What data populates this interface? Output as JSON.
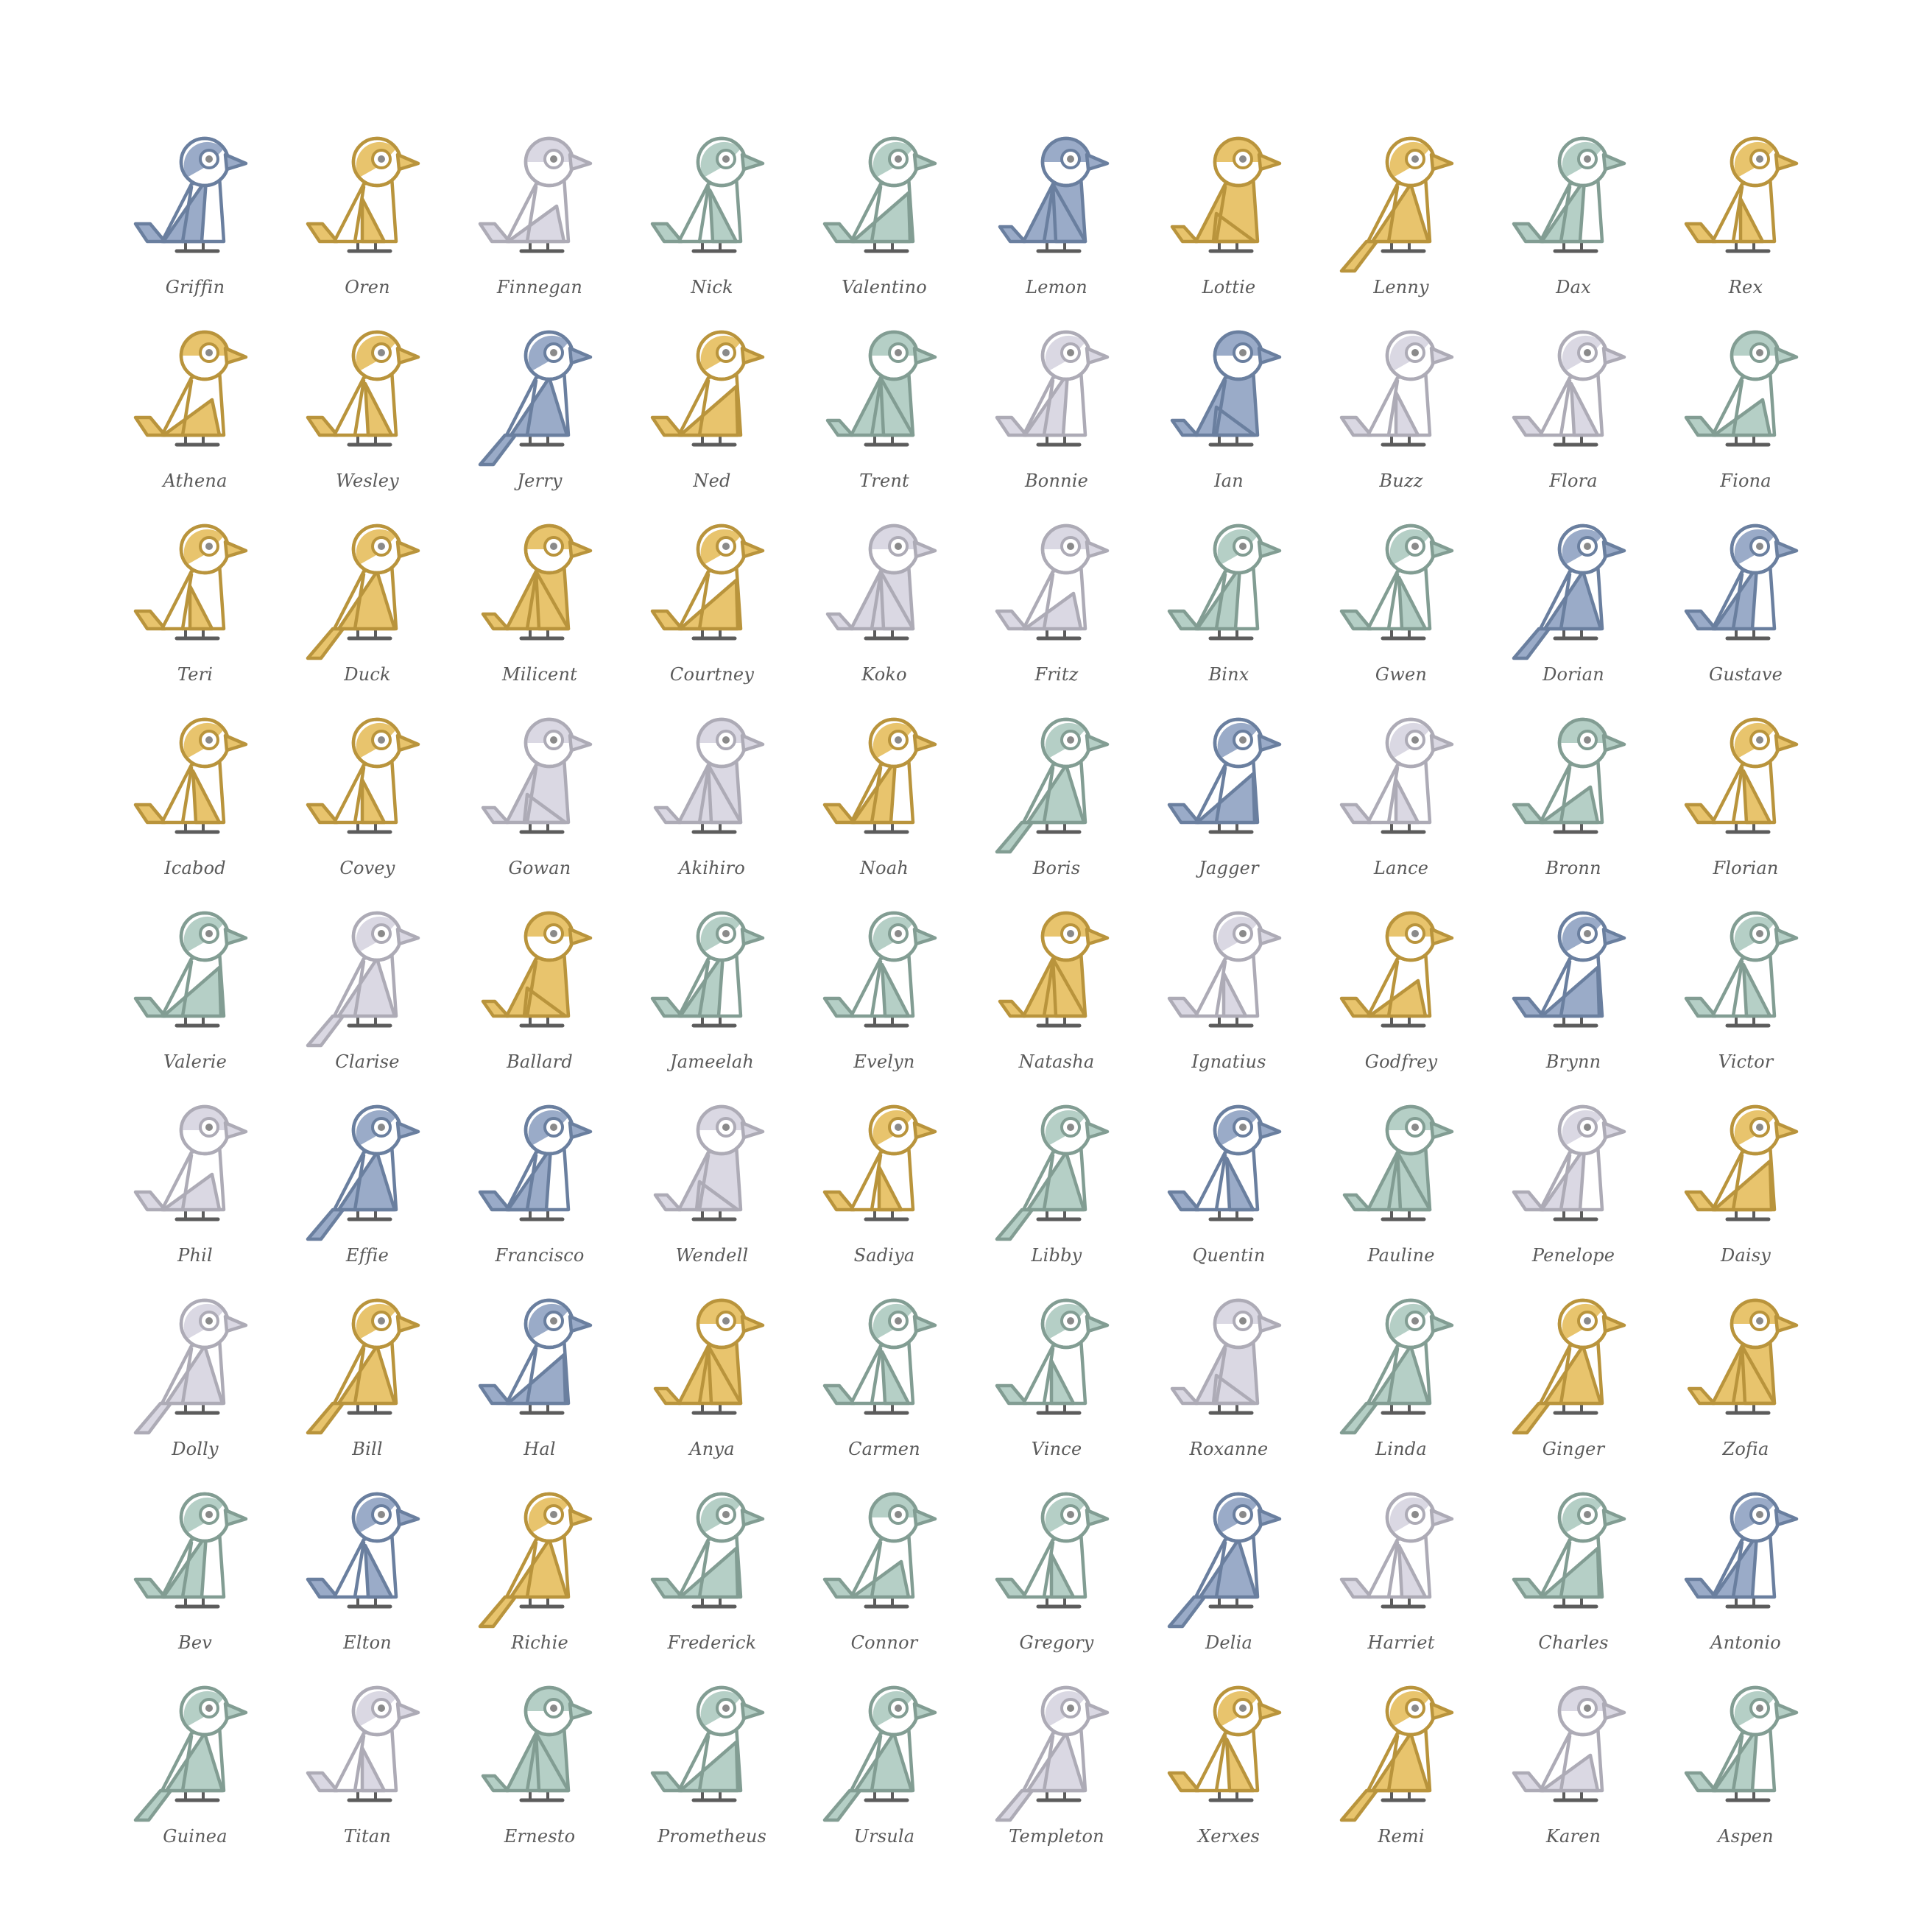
{
  "palette": {
    "blue": {
      "stroke": "#6a7f9f",
      "fill": "#9aabc8"
    },
    "gold": {
      "stroke": "#b9943c",
      "fill": "#e8c46d"
    },
    "lilac": {
      "stroke": "#adabb6",
      "fill": "#dad8e3"
    },
    "sage": {
      "stroke": "#829d93",
      "fill": "#b5cfc6"
    },
    "legs": "#5c5c5c",
    "pupil": "#8a8a8a"
  },
  "birds": [
    {
      "name": "Griffin",
      "color": "blue",
      "style": 1
    },
    {
      "name": "Oren",
      "color": "gold",
      "style": 2
    },
    {
      "name": "Finnegan",
      "color": "lilac",
      "style": 3
    },
    {
      "name": "Nick",
      "color": "sage",
      "style": 4
    },
    {
      "name": "Valentino",
      "color": "sage",
      "style": 5
    },
    {
      "name": "Lemon",
      "color": "blue",
      "style": 6
    },
    {
      "name": "Lottie",
      "color": "gold",
      "style": 0
    },
    {
      "name": "Lenny",
      "color": "gold",
      "style": 7
    },
    {
      "name": "Dax",
      "color": "sage",
      "style": 1
    },
    {
      "name": "Rex",
      "color": "gold",
      "style": 2
    },
    {
      "name": "Athena",
      "color": "gold",
      "style": 3
    },
    {
      "name": "Wesley",
      "color": "gold",
      "style": 4
    },
    {
      "name": "Jerry",
      "color": "blue",
      "style": 7
    },
    {
      "name": "Ned",
      "color": "gold",
      "style": 5
    },
    {
      "name": "Trent",
      "color": "sage",
      "style": 6
    },
    {
      "name": "Bonnie",
      "color": "lilac",
      "style": 1
    },
    {
      "name": "Ian",
      "color": "blue",
      "style": 0
    },
    {
      "name": "Buzz",
      "color": "lilac",
      "style": 2
    },
    {
      "name": "Flora",
      "color": "lilac",
      "style": 4
    },
    {
      "name": "Fiona",
      "color": "sage",
      "style": 3
    },
    {
      "name": "Teri",
      "color": "gold",
      "style": 2
    },
    {
      "name": "Duck",
      "color": "gold",
      "style": 7
    },
    {
      "name": "Milicent",
      "color": "gold",
      "style": 6
    },
    {
      "name": "Courtney",
      "color": "gold",
      "style": 5
    },
    {
      "name": "Koko",
      "color": "lilac",
      "style": 6
    },
    {
      "name": "Fritz",
      "color": "lilac",
      "style": 3
    },
    {
      "name": "Binx",
      "color": "sage",
      "style": 1
    },
    {
      "name": "Gwen",
      "color": "sage",
      "style": 4
    },
    {
      "name": "Dorian",
      "color": "blue",
      "style": 7
    },
    {
      "name": "Gustave",
      "color": "blue",
      "style": 1
    },
    {
      "name": "Icabod",
      "color": "gold",
      "style": 4
    },
    {
      "name": "Covey",
      "color": "gold",
      "style": 2
    },
    {
      "name": "Gowan",
      "color": "lilac",
      "style": 0
    },
    {
      "name": "Akihiro",
      "color": "lilac",
      "style": 6
    },
    {
      "name": "Noah",
      "color": "gold",
      "style": 1
    },
    {
      "name": "Boris",
      "color": "sage",
      "style": 7
    },
    {
      "name": "Jagger",
      "color": "blue",
      "style": 5
    },
    {
      "name": "Lance",
      "color": "lilac",
      "style": 2
    },
    {
      "name": "Bronn",
      "color": "sage",
      "style": 3
    },
    {
      "name": "Florian",
      "color": "gold",
      "style": 4
    },
    {
      "name": "Valerie",
      "color": "sage",
      "style": 5
    },
    {
      "name": "Clarise",
      "color": "lilac",
      "style": 7
    },
    {
      "name": "Ballard",
      "color": "gold",
      "style": 0
    },
    {
      "name": "Jameelah",
      "color": "sage",
      "style": 1
    },
    {
      "name": "Evelyn",
      "color": "sage",
      "style": 4
    },
    {
      "name": "Natasha",
      "color": "gold",
      "style": 6
    },
    {
      "name": "Ignatius",
      "color": "lilac",
      "style": 2
    },
    {
      "name": "Godfrey",
      "color": "gold",
      "style": 3
    },
    {
      "name": "Brynn",
      "color": "blue",
      "style": 5
    },
    {
      "name": "Victor",
      "color": "sage",
      "style": 4
    },
    {
      "name": "Phil",
      "color": "lilac",
      "style": 3
    },
    {
      "name": "Effie",
      "color": "blue",
      "style": 7
    },
    {
      "name": "Francisco",
      "color": "blue",
      "style": 1
    },
    {
      "name": "Wendell",
      "color": "lilac",
      "style": 0
    },
    {
      "name": "Sadiya",
      "color": "gold",
      "style": 2
    },
    {
      "name": "Libby",
      "color": "sage",
      "style": 7
    },
    {
      "name": "Quentin",
      "color": "blue",
      "style": 4
    },
    {
      "name": "Pauline",
      "color": "sage",
      "style": 6
    },
    {
      "name": "Penelope",
      "color": "lilac",
      "style": 1
    },
    {
      "name": "Daisy",
      "color": "gold",
      "style": 5
    },
    {
      "name": "Dolly",
      "color": "lilac",
      "style": 7
    },
    {
      "name": "Bill",
      "color": "gold",
      "style": 7
    },
    {
      "name": "Hal",
      "color": "blue",
      "style": 5
    },
    {
      "name": "Anya",
      "color": "gold",
      "style": 6
    },
    {
      "name": "Carmen",
      "color": "sage",
      "style": 4
    },
    {
      "name": "Vince",
      "color": "sage",
      "style": 2
    },
    {
      "name": "Roxanne",
      "color": "lilac",
      "style": 0
    },
    {
      "name": "Linda",
      "color": "sage",
      "style": 7
    },
    {
      "name": "Ginger",
      "color": "gold",
      "style": 7
    },
    {
      "name": "Zofia",
      "color": "gold",
      "style": 6
    },
    {
      "name": "Bev",
      "color": "sage",
      "style": 1
    },
    {
      "name": "Elton",
      "color": "blue",
      "style": 4
    },
    {
      "name": "Richie",
      "color": "gold",
      "style": 7
    },
    {
      "name": "Frederick",
      "color": "sage",
      "style": 5
    },
    {
      "name": "Connor",
      "color": "sage",
      "style": 3
    },
    {
      "name": "Gregory",
      "color": "sage",
      "style": 2
    },
    {
      "name": "Delia",
      "color": "blue",
      "style": 7
    },
    {
      "name": "Harriet",
      "color": "lilac",
      "style": 4
    },
    {
      "name": "Charles",
      "color": "sage",
      "style": 5
    },
    {
      "name": "Antonio",
      "color": "blue",
      "style": 1
    },
    {
      "name": "Guinea",
      "color": "sage",
      "style": 7
    },
    {
      "name": "Titan",
      "color": "lilac",
      "style": 2
    },
    {
      "name": "Ernesto",
      "color": "sage",
      "style": 6
    },
    {
      "name": "Prometheus",
      "color": "sage",
      "style": 5
    },
    {
      "name": "Ursula",
      "color": "sage",
      "style": 7
    },
    {
      "name": "Templeton",
      "color": "lilac",
      "style": 7
    },
    {
      "name": "Xerxes",
      "color": "gold",
      "style": 4
    },
    {
      "name": "Remi",
      "color": "gold",
      "style": 7
    },
    {
      "name": "Karen",
      "color": "lilac",
      "style": 3
    },
    {
      "name": "Aspen",
      "color": "sage",
      "style": 1
    }
  ]
}
